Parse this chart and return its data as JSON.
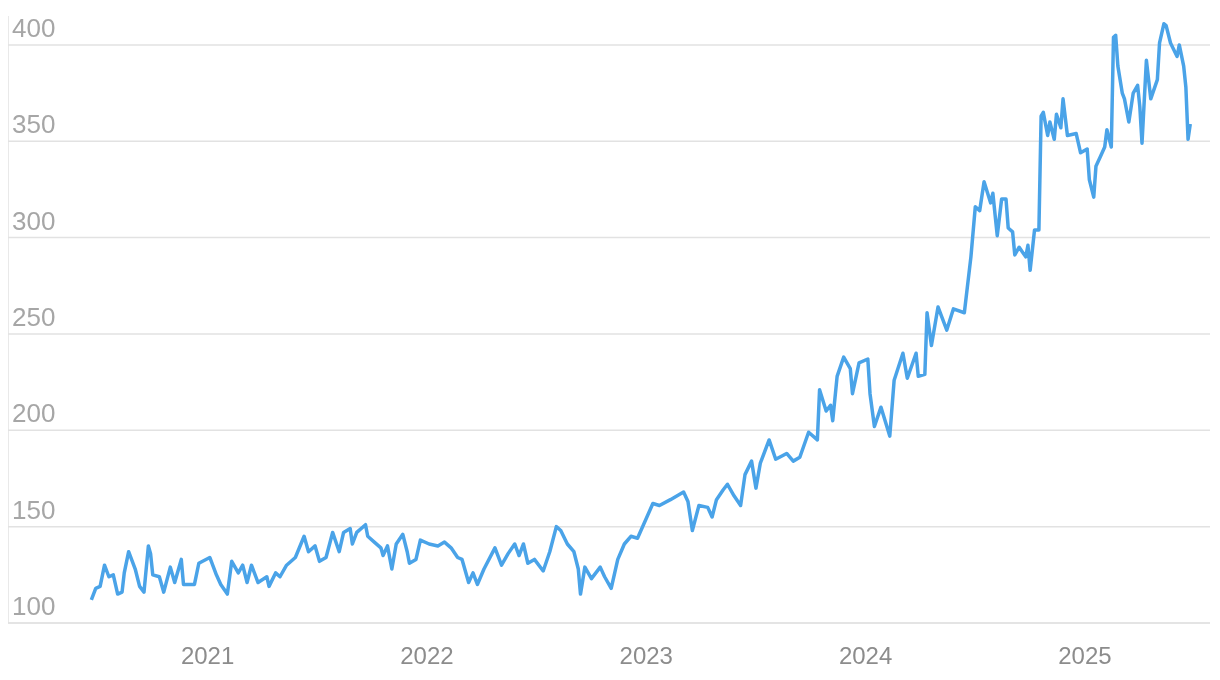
{
  "chart_data": {
    "type": "line",
    "x": [
      2020.47,
      2020.49,
      2020.51,
      2020.53,
      2020.55,
      2020.57,
      2020.59,
      2020.61,
      2020.62,
      2020.64,
      2020.67,
      2020.69,
      2020.71,
      2020.73,
      2020.74,
      2020.75,
      2020.78,
      2020.8,
      2020.83,
      2020.85,
      2020.88,
      2020.89,
      2020.94,
      2020.96,
      2021.01,
      2021.04,
      2021.06,
      2021.09,
      2021.11,
      2021.14,
      2021.16,
      2021.18,
      2021.2,
      2021.23,
      2021.27,
      2021.28,
      2021.31,
      2021.33,
      2021.36,
      2021.4,
      2021.44,
      2021.46,
      2021.49,
      2021.51,
      2021.54,
      2021.57,
      2021.6,
      2021.62,
      2021.65,
      2021.66,
      2021.68,
      2021.72,
      2021.73,
      2021.76,
      2021.79,
      2021.8,
      2021.82,
      2021.84,
      2021.86,
      2021.89,
      2021.91,
      2021.92,
      2021.95,
      2021.97,
      2022.01,
      2022.05,
      2022.08,
      2022.11,
      2022.14,
      2022.16,
      2022.19,
      2022.21,
      2022.23,
      2022.26,
      2022.31,
      2022.34,
      2022.37,
      2022.4,
      2022.42,
      2022.44,
      2022.46,
      2022.49,
      2022.53,
      2022.56,
      2022.59,
      2022.61,
      2022.64,
      2022.67,
      2022.69,
      2022.7,
      2022.72,
      2022.75,
      2022.79,
      2022.81,
      2022.84,
      2022.87,
      2022.9,
      2022.93,
      2022.96,
      2023.03,
      2023.06,
      2023.11,
      2023.17,
      2023.19,
      2023.21,
      2023.24,
      2023.28,
      2023.3,
      2023.32,
      2023.35,
      2023.37,
      2023.4,
      2023.43,
      2023.45,
      2023.48,
      2023.5,
      2023.52,
      2023.56,
      2023.59,
      2023.64,
      2023.67,
      2023.7,
      2023.74,
      2023.78,
      2023.79,
      2023.82,
      2023.84,
      2023.85,
      2023.87,
      2023.9,
      2023.93,
      2023.94,
      2023.97,
      2024.01,
      2024.02,
      2024.04,
      2024.07,
      2024.11,
      2024.13,
      2024.17,
      2024.19,
      2024.23,
      2024.24,
      2024.27,
      2024.28,
      2024.3,
      2024.33,
      2024.37,
      2024.4,
      2024.45,
      2024.48,
      2024.5,
      2024.52,
      2024.54,
      2024.57,
      2024.58,
      2024.6,
      2024.62,
      2024.64,
      2024.65,
      2024.67,
      2024.68,
      2024.7,
      2024.73,
      2024.74,
      2024.75,
      2024.77,
      2024.79,
      2024.8,
      2024.81,
      2024.83,
      2024.84,
      2024.86,
      2024.87,
      2024.89,
      2024.9,
      2024.92,
      2024.96,
      2024.98,
      2025.01,
      2025.02,
      2025.04,
      2025.05,
      2025.07,
      2025.09,
      2025.1,
      2025.12,
      2025.13,
      2025.14,
      2025.15,
      2025.17,
      2025.18,
      2025.2,
      2025.22,
      2025.24,
      2025.25,
      2025.26,
      2025.28,
      2025.3,
      2025.33,
      2025.34,
      2025.36,
      2025.37,
      2025.39,
      2025.42,
      2025.43,
      2025.45,
      2025.46,
      2025.47,
      2025.48
    ],
    "series": [
      {
        "color": "#4aa3e8",
        "values": [
          112,
          118,
          119,
          130,
          124,
          125,
          115,
          116,
          126,
          137,
          128,
          119,
          116,
          140,
          136,
          125,
          124,
          116,
          129,
          121,
          133,
          120,
          120,
          131,
          134,
          125,
          120,
          115,
          132,
          126,
          130,
          121,
          130,
          121,
          124,
          119,
          126,
          124,
          130,
          134,
          145,
          137,
          140,
          132,
          134,
          147,
          137,
          147,
          149,
          141,
          147,
          151,
          145,
          142,
          139,
          135,
          140,
          128,
          141,
          146,
          137,
          131,
          133,
          143,
          141,
          140,
          142,
          139,
          134,
          133,
          121,
          126,
          120,
          128,
          139,
          130,
          136,
          141,
          135,
          141,
          131,
          133,
          127,
          137,
          150,
          148,
          141,
          137,
          128,
          115,
          129,
          123,
          129,
          124,
          118,
          133,
          141,
          145,
          144,
          162,
          161,
          164,
          168,
          163,
          148,
          161,
          160,
          155,
          164,
          169,
          172,
          166,
          161,
          177,
          184,
          170,
          183,
          195,
          185,
          188,
          184,
          186,
          199,
          195,
          221,
          210,
          213,
          205,
          228,
          238,
          232,
          219,
          235,
          237,
          219,
          202,
          212,
          197,
          226,
          240,
          227,
          240,
          228,
          229,
          261,
          244,
          264,
          252,
          263,
          261,
          290,
          316,
          314,
          329,
          318,
          323,
          301,
          320,
          320,
          305,
          303,
          291,
          295,
          290,
          296,
          283,
          304,
          304,
          363,
          365,
          353,
          360,
          351,
          364,
          357,
          372,
          353,
          354,
          344,
          346,
          330,
          321,
          337,
          342,
          347,
          356,
          347,
          404,
          405,
          389,
          375,
          372,
          360,
          375,
          379,
          368,
          349,
          392,
          372,
          382,
          401,
          411,
          410,
          401,
          394,
          400,
          389,
          378,
          351,
          359
        ]
      }
    ],
    "xlim": [
      2020.09,
      2025.57
    ],
    "xticks": [
      2021,
      2022,
      2023,
      2024,
      2025
    ],
    "ylim": [
      100,
      415
    ],
    "yticks": [
      100,
      150,
      200,
      250,
      300,
      350,
      400
    ],
    "grid": "y",
    "legend": false,
    "marker": "none",
    "line_style": "solid"
  }
}
